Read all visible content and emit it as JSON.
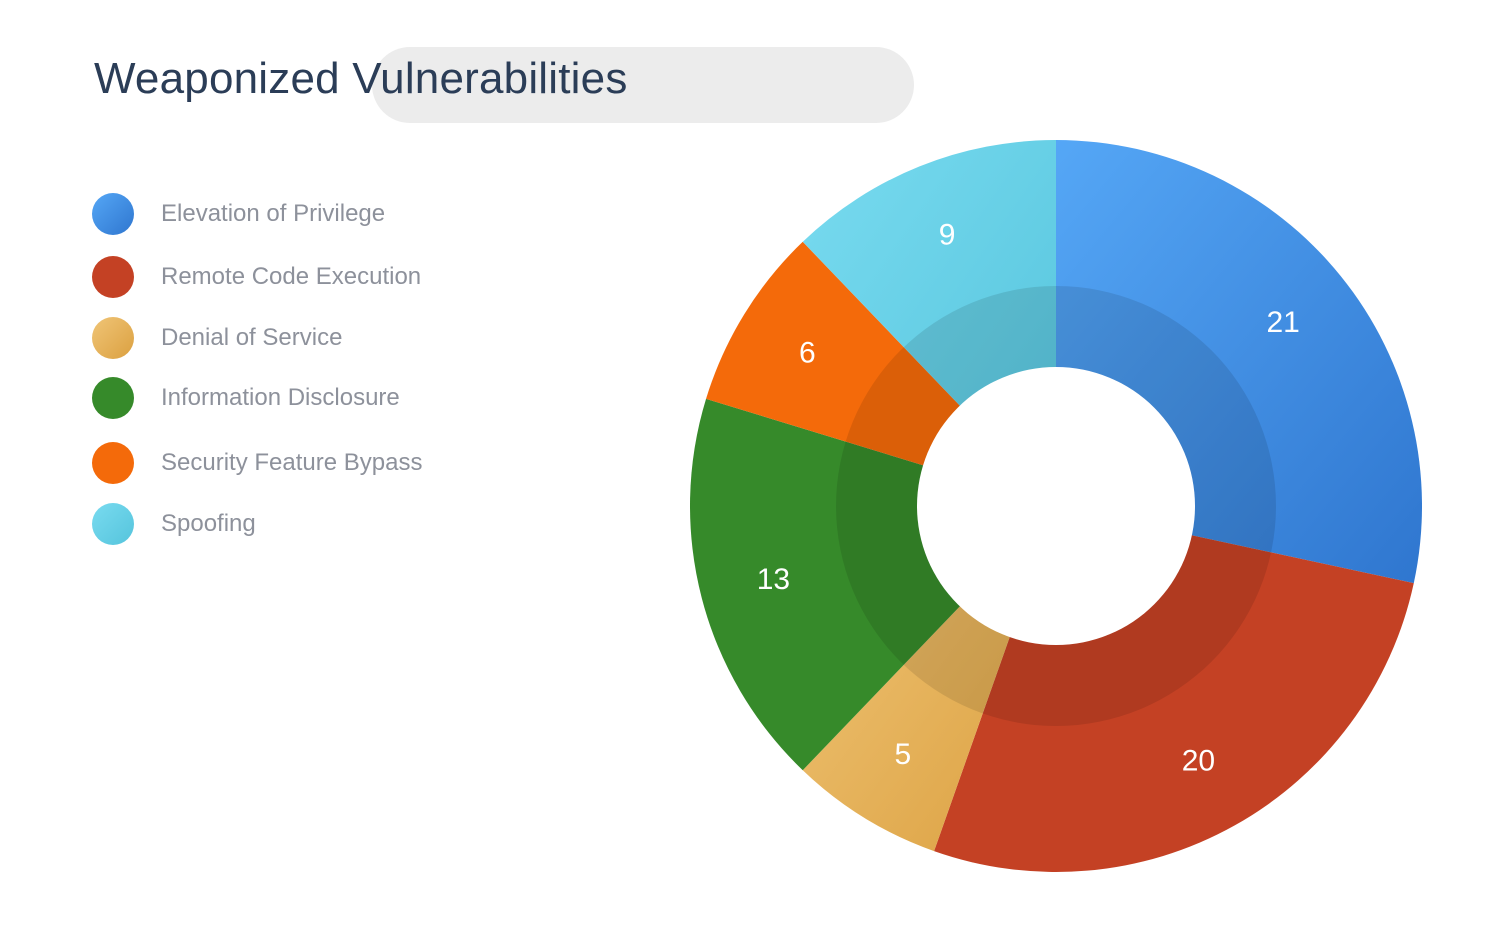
{
  "chart_data": {
    "type": "pie",
    "variant": "donut",
    "title": "Weaponized Vulnerabilities",
    "legend_position": "left",
    "categories": [
      "Elevation of Privilege",
      "Remote Code Execution",
      "Denial of Service",
      "Information Disclosure",
      "Security Feature Bypass",
      "Spoofing"
    ],
    "values": [
      21,
      20,
      5,
      13,
      6,
      9
    ],
    "colors": [
      "#3f8fe3",
      "#c44124",
      "#e3a94d",
      "#368a2a",
      "#f46a0a",
      "#62d1e5"
    ],
    "gradients": [
      [
        "#55a7f6",
        "#2f76cf"
      ],
      [
        "#c44124",
        "#c44124"
      ],
      [
        "#f0c577",
        "#dba040"
      ],
      [
        "#368a2a",
        "#368a2a"
      ],
      [
        "#f46a0a",
        "#f46a0a"
      ],
      [
        "#79dbf0",
        "#55c4dc"
      ]
    ]
  }
}
